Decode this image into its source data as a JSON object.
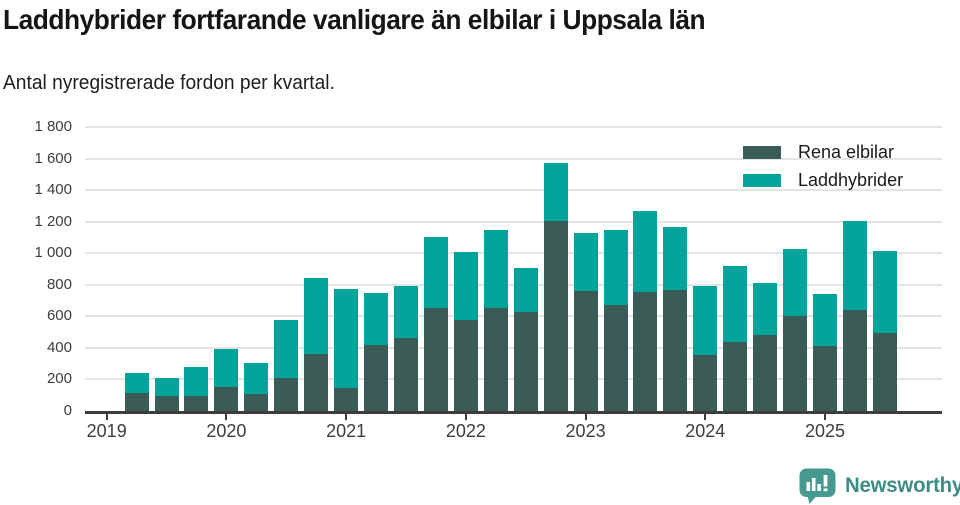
{
  "header": {
    "title": "Laddhybrider fortfarande vanligare än elbilar i Uppsala län",
    "subtitle": "Antal nyregistrerade fordon per kvartal."
  },
  "legend": {
    "items": [
      {
        "label": "Rena elbilar",
        "color": "#3a5b56"
      },
      {
        "label": "Laddhybrider",
        "color": "#00a49b"
      }
    ]
  },
  "footer": {
    "brand": "Newsworthy",
    "logo_icon": "newsworthy-speech-bubble-barchart-icon",
    "logo_color": "#47988e",
    "text_color": "#3d8d86"
  },
  "chart_data": {
    "type": "bar",
    "stacked": true,
    "title": "Laddhybrider fortfarande vanligare än elbilar i Uppsala län",
    "subtitle": "Antal nyregistrerade fordon per kvartal.",
    "x": [
      "2019 K2",
      "2019 K3",
      "2019 K4",
      "2020 K1",
      "2020 K2",
      "2020 K3",
      "2020 K4",
      "2021 K1",
      "2021 K2",
      "2021 K3",
      "2021 K4",
      "2022 K1",
      "2022 K2",
      "2022 K3",
      "2022 K4",
      "2023 K1",
      "2023 K2",
      "2023 K3",
      "2023 K4",
      "2024 K1",
      "2024 K2",
      "2024 K3",
      "2024 K4",
      "2025 K1",
      "2025 K2",
      "2025 K3"
    ],
    "x_start_offset_quarters": 1,
    "series": [
      {
        "name": "Rena elbilar",
        "color": "#3a5b56",
        "values": [
          115,
          95,
          95,
          150,
          105,
          210,
          360,
          145,
          420,
          460,
          650,
          575,
          650,
          630,
          1205,
          760,
          675,
          755,
          765,
          355,
          440,
          480,
          605,
          410,
          640,
          495
        ]
      },
      {
        "name": "Laddhybrider",
        "color": "#00a49b",
        "values": [
          125,
          115,
          185,
          245,
          200,
          370,
          480,
          630,
          330,
          335,
          455,
          435,
          500,
          275,
          365,
          370,
          470,
          510,
          400,
          435,
          480,
          330,
          425,
          330,
          565,
          520
        ]
      }
    ],
    "year_ticks": [
      "2019",
      "2020",
      "2021",
      "2022",
      "2023",
      "2024",
      "2025"
    ],
    "ylim": [
      0,
      1800
    ],
    "ytick_step": 200,
    "ytick_labels": [
      "0",
      "200",
      "400",
      "600",
      "800",
      "1 000",
      "1 200",
      "1 400",
      "1 600",
      "1 800"
    ],
    "grid": "horizontal",
    "legend_position": "top-right",
    "axis_color": "#3d3d3d",
    "grid_color": "#e4e4e4"
  }
}
